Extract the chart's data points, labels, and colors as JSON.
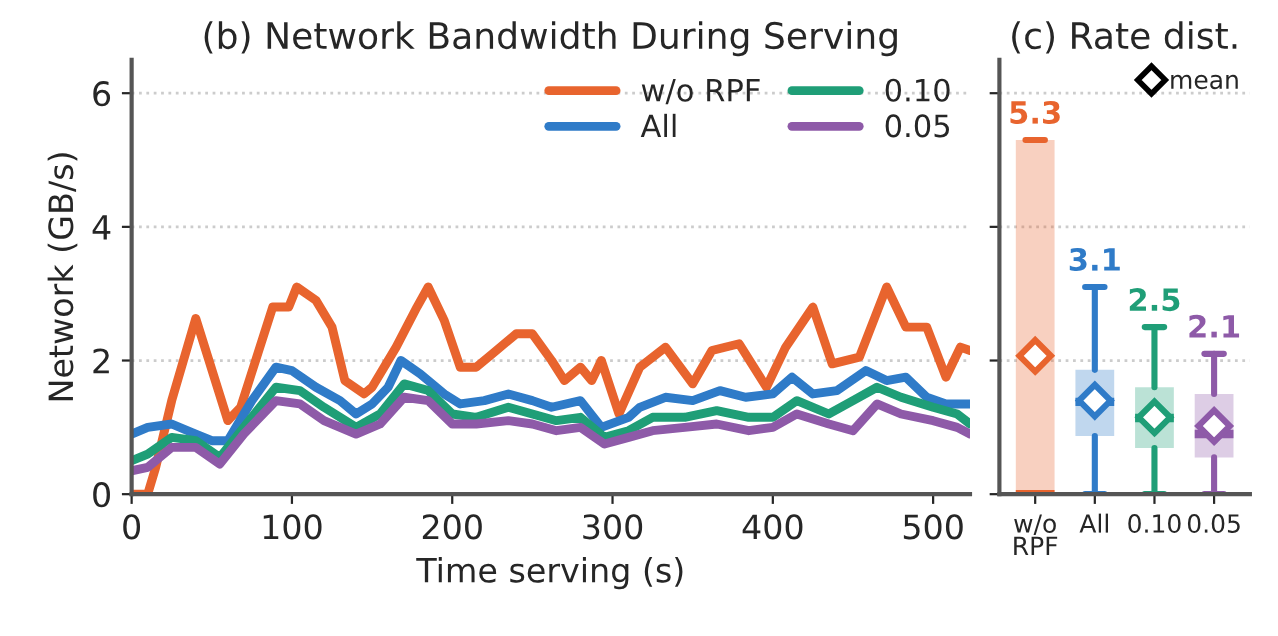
{
  "chart_data": [
    {
      "type": "line",
      "title": "(b) Network Bandwidth During Serving",
      "xlabel": "Time serving (s)",
      "ylabel": "Network (GB/s)",
      "xlim": [
        0,
        523
      ],
      "xticks": [
        0,
        100,
        200,
        300,
        400,
        500
      ],
      "ylim": [
        0,
        6.5
      ],
      "yticks": [
        0,
        2,
        4,
        6
      ],
      "grid": "y",
      "legend": "top right",
      "line_style": "solid",
      "marker": "none",
      "series": [
        {
          "name": "w/o RPF",
          "color": "#e8642e",
          "x": [
            0,
            10,
            15,
            25,
            40,
            60,
            68,
            88,
            98,
            103,
            115,
            125,
            133,
            145,
            150,
            165,
            178,
            185,
            195,
            205,
            215,
            225,
            240,
            250,
            262,
            270,
            280,
            287,
            293,
            304,
            317,
            333,
            350,
            362,
            379,
            396,
            408,
            425,
            437,
            454,
            471,
            483,
            496,
            508,
            517,
            523
          ],
          "values": [
            0,
            0,
            0.4,
            1.4,
            2.63,
            1.1,
            1.3,
            2.8,
            2.8,
            3.1,
            2.9,
            2.5,
            1.7,
            1.5,
            1.6,
            2.2,
            2.8,
            3.1,
            2.6,
            1.9,
            1.9,
            2.1,
            2.4,
            2.4,
            2.0,
            1.7,
            1.9,
            1.7,
            2.0,
            1.2,
            1.9,
            2.2,
            1.65,
            2.15,
            2.25,
            1.6,
            2.2,
            2.8,
            1.95,
            2.05,
            3.1,
            2.5,
            2.5,
            1.75,
            2.2,
            2.15
          ]
        },
        {
          "name": "All",
          "color": "#2f7bc8",
          "x": [
            0,
            10,
            25,
            40,
            50,
            60,
            75,
            90,
            100,
            115,
            130,
            140,
            150,
            160,
            168,
            180,
            195,
            205,
            220,
            235,
            250,
            262,
            280,
            293,
            310,
            317,
            333,
            350,
            367,
            383,
            400,
            412,
            425,
            440,
            458,
            471,
            483,
            496,
            508,
            523
          ],
          "values": [
            0.9,
            1.0,
            1.05,
            0.9,
            0.8,
            0.8,
            1.4,
            1.9,
            1.85,
            1.6,
            1.4,
            1.2,
            1.35,
            1.6,
            2.0,
            1.8,
            1.5,
            1.35,
            1.4,
            1.5,
            1.4,
            1.3,
            1.4,
            1.0,
            1.15,
            1.3,
            1.45,
            1.4,
            1.55,
            1.45,
            1.5,
            1.75,
            1.5,
            1.55,
            1.85,
            1.7,
            1.75,
            1.45,
            1.35,
            1.35
          ]
        },
        {
          "name": "0.10",
          "color": "#1f9e77",
          "x": [
            0,
            10,
            25,
            40,
            55,
            70,
            90,
            105,
            120,
            140,
            155,
            170,
            185,
            200,
            215,
            235,
            250,
            265,
            280,
            295,
            310,
            325,
            345,
            365,
            385,
            400,
            415,
            435,
            450,
            465,
            480,
            500,
            515,
            523
          ],
          "values": [
            0.5,
            0.6,
            0.85,
            0.8,
            0.55,
            1.0,
            1.6,
            1.55,
            1.3,
            1.0,
            1.2,
            1.65,
            1.55,
            1.2,
            1.15,
            1.3,
            1.2,
            1.1,
            1.15,
            0.85,
            0.95,
            1.15,
            1.15,
            1.25,
            1.15,
            1.15,
            1.4,
            1.2,
            1.4,
            1.6,
            1.45,
            1.3,
            1.2,
            1.05
          ]
        },
        {
          "name": "0.05",
          "color": "#8e5aa8",
          "x": [
            0,
            10,
            25,
            40,
            55,
            70,
            90,
            105,
            120,
            140,
            155,
            170,
            185,
            200,
            215,
            235,
            250,
            265,
            280,
            295,
            310,
            325,
            345,
            365,
            385,
            400,
            415,
            435,
            450,
            465,
            480,
            500,
            515,
            523
          ],
          "values": [
            0.35,
            0.4,
            0.7,
            0.7,
            0.45,
            0.9,
            1.4,
            1.35,
            1.1,
            0.9,
            1.05,
            1.45,
            1.4,
            1.05,
            1.05,
            1.1,
            1.05,
            0.95,
            1.0,
            0.75,
            0.85,
            0.95,
            1.0,
            1.05,
            0.95,
            1.0,
            1.2,
            1.05,
            0.95,
            1.35,
            1.2,
            1.1,
            1.0,
            0.9
          ]
        }
      ]
    },
    {
      "type": "box",
      "title": "(c) Rate dist.",
      "categories": [
        "w/o\nRPF",
        "All",
        "0.10",
        "0.05"
      ],
      "ylim": [
        0,
        6.5
      ],
      "yticks": [
        0,
        2,
        4,
        6
      ],
      "grid": "y",
      "tick_labels": "x",
      "annotations": [
        "mean"
      ],
      "colors": [
        "#e8642e",
        "#2f7bc8",
        "#1f9e77",
        "#8e5aa8"
      ],
      "value_labels": [
        "5.3",
        "3.1",
        "2.5",
        "2.1"
      ],
      "boxes": [
        {
          "low": 0,
          "q1": 0,
          "median": 0,
          "q3": 5.3,
          "high": 5.3,
          "mean": 2.07
        },
        {
          "low": 0,
          "q1": 0.87,
          "median": 1.38,
          "q3": 1.86,
          "high": 3.1,
          "mean": 1.4
        },
        {
          "low": 0,
          "q1": 0.69,
          "median": 1.14,
          "q3": 1.6,
          "high": 2.5,
          "mean": 1.15
        },
        {
          "low": 0,
          "q1": 0.55,
          "median": 0.9,
          "q3": 1.5,
          "high": 2.1,
          "mean": 1.02
        }
      ]
    }
  ]
}
